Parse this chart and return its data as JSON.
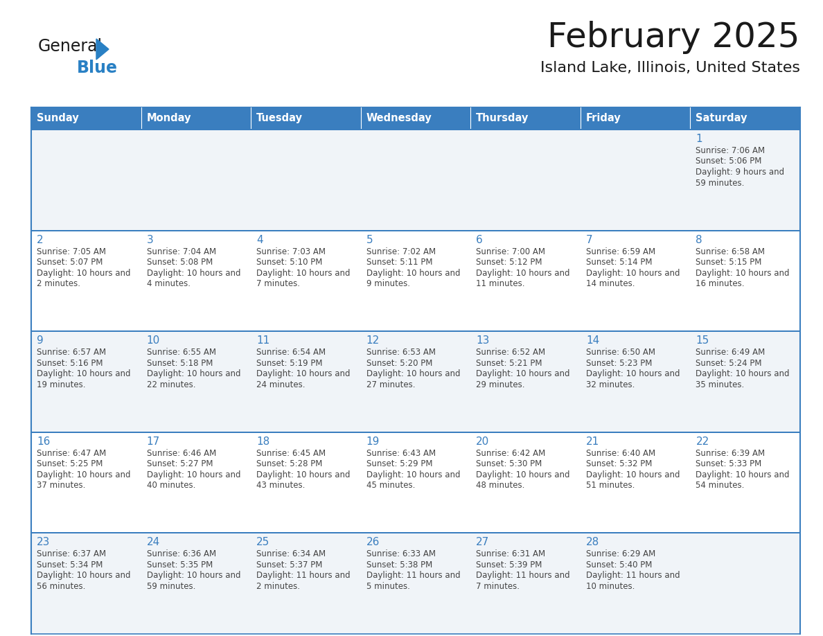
{
  "title": "February 2025",
  "subtitle": "Island Lake, Illinois, United States",
  "days_of_week": [
    "Sunday",
    "Monday",
    "Tuesday",
    "Wednesday",
    "Thursday",
    "Friday",
    "Saturday"
  ],
  "header_bg": "#3a7ebf",
  "header_text": "#ffffff",
  "cell_bg_odd": "#f0f4f8",
  "cell_bg_even": "#ffffff",
  "border_color": "#3a7ebf",
  "day_number_color": "#3a7ebf",
  "text_color": "#444444",
  "calendar_data": [
    [
      null,
      null,
      null,
      null,
      null,
      null,
      {
        "day": 1,
        "sunrise": "7:06 AM",
        "sunset": "5:06 PM",
        "daylight": "9 hours and 59 minutes."
      }
    ],
    [
      {
        "day": 2,
        "sunrise": "7:05 AM",
        "sunset": "5:07 PM",
        "daylight": "10 hours and 2 minutes."
      },
      {
        "day": 3,
        "sunrise": "7:04 AM",
        "sunset": "5:08 PM",
        "daylight": "10 hours and 4 minutes."
      },
      {
        "day": 4,
        "sunrise": "7:03 AM",
        "sunset": "5:10 PM",
        "daylight": "10 hours and 7 minutes."
      },
      {
        "day": 5,
        "sunrise": "7:02 AM",
        "sunset": "5:11 PM",
        "daylight": "10 hours and 9 minutes."
      },
      {
        "day": 6,
        "sunrise": "7:00 AM",
        "sunset": "5:12 PM",
        "daylight": "10 hours and 11 minutes."
      },
      {
        "day": 7,
        "sunrise": "6:59 AM",
        "sunset": "5:14 PM",
        "daylight": "10 hours and 14 minutes."
      },
      {
        "day": 8,
        "sunrise": "6:58 AM",
        "sunset": "5:15 PM",
        "daylight": "10 hours and 16 minutes."
      }
    ],
    [
      {
        "day": 9,
        "sunrise": "6:57 AM",
        "sunset": "5:16 PM",
        "daylight": "10 hours and 19 minutes."
      },
      {
        "day": 10,
        "sunrise": "6:55 AM",
        "sunset": "5:18 PM",
        "daylight": "10 hours and 22 minutes."
      },
      {
        "day": 11,
        "sunrise": "6:54 AM",
        "sunset": "5:19 PM",
        "daylight": "10 hours and 24 minutes."
      },
      {
        "day": 12,
        "sunrise": "6:53 AM",
        "sunset": "5:20 PM",
        "daylight": "10 hours and 27 minutes."
      },
      {
        "day": 13,
        "sunrise": "6:52 AM",
        "sunset": "5:21 PM",
        "daylight": "10 hours and 29 minutes."
      },
      {
        "day": 14,
        "sunrise": "6:50 AM",
        "sunset": "5:23 PM",
        "daylight": "10 hours and 32 minutes."
      },
      {
        "day": 15,
        "sunrise": "6:49 AM",
        "sunset": "5:24 PM",
        "daylight": "10 hours and 35 minutes."
      }
    ],
    [
      {
        "day": 16,
        "sunrise": "6:47 AM",
        "sunset": "5:25 PM",
        "daylight": "10 hours and 37 minutes."
      },
      {
        "day": 17,
        "sunrise": "6:46 AM",
        "sunset": "5:27 PM",
        "daylight": "10 hours and 40 minutes."
      },
      {
        "day": 18,
        "sunrise": "6:45 AM",
        "sunset": "5:28 PM",
        "daylight": "10 hours and 43 minutes."
      },
      {
        "day": 19,
        "sunrise": "6:43 AM",
        "sunset": "5:29 PM",
        "daylight": "10 hours and 45 minutes."
      },
      {
        "day": 20,
        "sunrise": "6:42 AM",
        "sunset": "5:30 PM",
        "daylight": "10 hours and 48 minutes."
      },
      {
        "day": 21,
        "sunrise": "6:40 AM",
        "sunset": "5:32 PM",
        "daylight": "10 hours and 51 minutes."
      },
      {
        "day": 22,
        "sunrise": "6:39 AM",
        "sunset": "5:33 PM",
        "daylight": "10 hours and 54 minutes."
      }
    ],
    [
      {
        "day": 23,
        "sunrise": "6:37 AM",
        "sunset": "5:34 PM",
        "daylight": "10 hours and 56 minutes."
      },
      {
        "day": 24,
        "sunrise": "6:36 AM",
        "sunset": "5:35 PM",
        "daylight": "10 hours and 59 minutes."
      },
      {
        "day": 25,
        "sunrise": "6:34 AM",
        "sunset": "5:37 PM",
        "daylight": "11 hours and 2 minutes."
      },
      {
        "day": 26,
        "sunrise": "6:33 AM",
        "sunset": "5:38 PM",
        "daylight": "11 hours and 5 minutes."
      },
      {
        "day": 27,
        "sunrise": "6:31 AM",
        "sunset": "5:39 PM",
        "daylight": "11 hours and 7 minutes."
      },
      {
        "day": 28,
        "sunrise": "6:29 AM",
        "sunset": "5:40 PM",
        "daylight": "11 hours and 10 minutes."
      },
      null
    ]
  ],
  "logo_color_general": "#1a1a1a",
  "logo_color_blue": "#2980c4",
  "logo_triangle_color": "#2980c4"
}
